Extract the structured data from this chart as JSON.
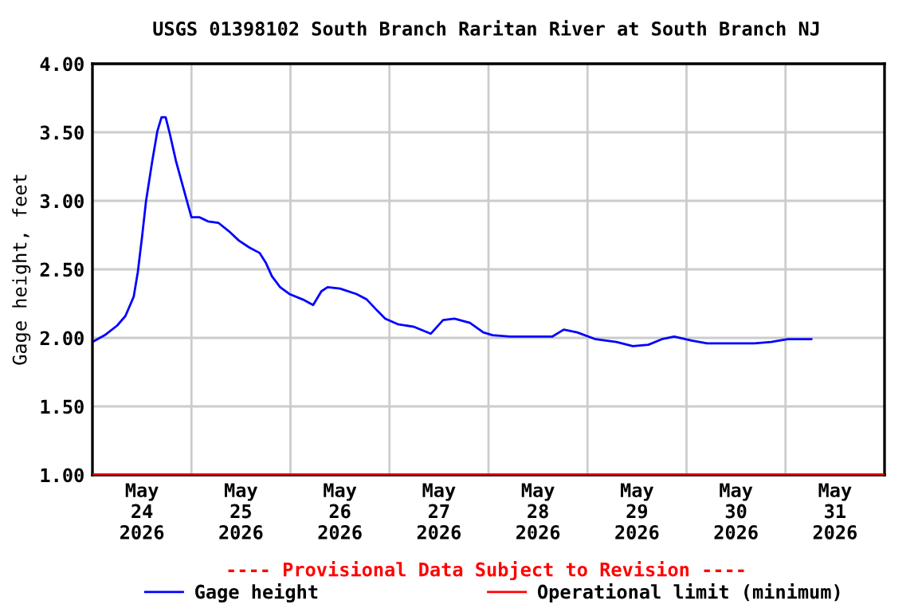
{
  "chart_data": {
    "type": "line",
    "title": "USGS 01398102 South Branch Raritan River at South Branch NJ",
    "ylabel": "Gage height, feet",
    "x": [
      "2026-05-24T00:00",
      "2026-05-24T03:00",
      "2026-05-24T06:00",
      "2026-05-24T08:00",
      "2026-05-24T10:00",
      "2026-05-24T11:00",
      "2026-05-24T12:00",
      "2026-05-24T13:00",
      "2026-05-24T14:30",
      "2026-05-24T15:45",
      "2026-05-24T16:45",
      "2026-05-24T17:45",
      "2026-05-24T18:45",
      "2026-05-24T20:15",
      "2026-05-24T22:15",
      "2026-05-25T00:00",
      "2026-05-25T02:00",
      "2026-05-25T04:00",
      "2026-05-25T06:30",
      "2026-05-25T09:00",
      "2026-05-25T11:30",
      "2026-05-25T14:00",
      "2026-05-25T16:30",
      "2026-05-25T18:00",
      "2026-05-25T19:30",
      "2026-05-25T21:30",
      "2026-05-25T23:45",
      "2026-05-26T03:00",
      "2026-05-26T05:30",
      "2026-05-26T07:30",
      "2026-05-26T09:00",
      "2026-05-26T12:00",
      "2026-05-26T16:00",
      "2026-05-26T18:30",
      "2026-05-26T21:00",
      "2026-05-26T23:00",
      "2026-05-27T02:00",
      "2026-05-27T06:00",
      "2026-05-27T10:00",
      "2026-05-27T13:00",
      "2026-05-27T15:45",
      "2026-05-27T19:30",
      "2026-05-27T22:45",
      "2026-05-28T01:00",
      "2026-05-28T05:15",
      "2026-05-28T15:30",
      "2026-05-28T18:15",
      "2026-05-28T21:30",
      "2026-05-29T02:00",
      "2026-05-29T07:00",
      "2026-05-29T11:00",
      "2026-05-29T14:45",
      "2026-05-29T18:00",
      "2026-05-29T21:00",
      "2026-05-30T01:15",
      "2026-05-30T05:00",
      "2026-05-30T11:30",
      "2026-05-30T16:30",
      "2026-05-30T20:30",
      "2026-05-31T00:30",
      "2026-05-31T06:15"
    ],
    "series": [
      {
        "name": "Gage height",
        "color": "#0000ff",
        "values": [
          1.97,
          2.02,
          2.09,
          2.16,
          2.3,
          2.48,
          2.73,
          3.0,
          3.29,
          3.51,
          3.61,
          3.61,
          3.49,
          3.29,
          3.07,
          2.88,
          2.88,
          2.85,
          2.84,
          2.78,
          2.71,
          2.66,
          2.62,
          2.55,
          2.45,
          2.37,
          2.32,
          2.28,
          2.24,
          2.34,
          2.37,
          2.36,
          2.32,
          2.28,
          2.2,
          2.14,
          2.1,
          2.08,
          2.03,
          2.13,
          2.14,
          2.11,
          2.04,
          2.02,
          2.01,
          2.01,
          2.06,
          2.04,
          1.99,
          1.97,
          1.94,
          1.95,
          1.99,
          2.01,
          1.98,
          1.96,
          1.96,
          1.96,
          1.97,
          1.99,
          1.99
        ]
      }
    ],
    "ref_lines": [
      {
        "axis": "y",
        "value": 1.0,
        "label": "Operational limit (minimum)",
        "color": "#ff0000"
      }
    ],
    "annotations": [
      "---- Provisional Data Subject to Revision ----"
    ],
    "xlim": [
      "2026-05-24T00:00",
      "2026-06-01T00:00"
    ],
    "xticks": [
      {
        "value": "2026-05-24T12:00",
        "label": "May\n24\n2026"
      },
      {
        "value": "2026-05-25T00:00",
        "label": null
      },
      {
        "value": "2026-05-25T12:00",
        "label": "May\n25\n2026"
      },
      {
        "value": "2026-05-26T00:00",
        "label": null
      },
      {
        "value": "2026-05-26T12:00",
        "label": "May\n26\n2026"
      },
      {
        "value": "2026-05-27T00:00",
        "label": null
      },
      {
        "value": "2026-05-27T12:00",
        "label": "May\n27\n2026"
      },
      {
        "value": "2026-05-28T00:00",
        "label": null
      },
      {
        "value": "2026-05-28T12:00",
        "label": "May\n28\n2026"
      },
      {
        "value": "2026-05-29T00:00",
        "label": null
      },
      {
        "value": "2026-05-29T12:00",
        "label": "May\n29\n2026"
      },
      {
        "value": "2026-05-30T00:00",
        "label": null
      },
      {
        "value": "2026-05-30T12:00",
        "label": "May\n30\n2026"
      },
      {
        "value": "2026-05-31T00:00",
        "label": null
      },
      {
        "value": "2026-05-31T12:00",
        "label": "May\n31\n2026"
      }
    ],
    "ylim": [
      1.0,
      4.0
    ],
    "yticks": [
      {
        "value": 1.0,
        "label": "1.00"
      },
      {
        "value": 1.5,
        "label": "1.50"
      },
      {
        "value": 2.0,
        "label": "2.00"
      },
      {
        "value": 2.5,
        "label": "2.50"
      },
      {
        "value": 3.0,
        "label": "3.00"
      },
      {
        "value": 3.5,
        "label": "3.50"
      },
      {
        "value": 4.0,
        "label": "4.00"
      }
    ],
    "grid": true,
    "legend": "bottom"
  }
}
